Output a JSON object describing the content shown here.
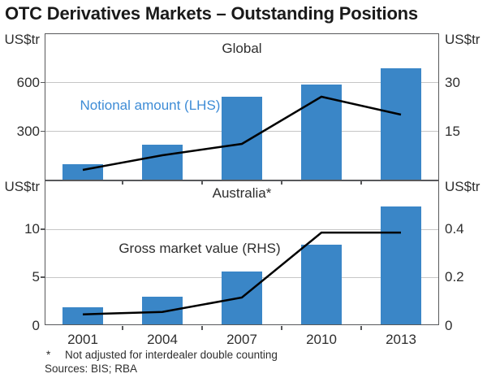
{
  "title": "OTC Derivatives Markets – Outstanding Positions",
  "footnote": {
    "marker": "*",
    "text": "Not adjusted for interdealer double counting",
    "sources": "Sources: BIS; RBA"
  },
  "colors": {
    "bar_blue": "#3a86c7",
    "blue_label": "#3e8cd6",
    "line_black": "#000000",
    "axis_gray": "#58595b",
    "grid_gray": "#c6c6c6"
  },
  "chart_data": [
    {
      "type": "bar",
      "panel_label": "Global",
      "unit_left": "US$tr",
      "unit_right": "US$tr",
      "categories": [
        "2001",
        "2004",
        "2007",
        "2010",
        "2013"
      ],
      "series": [
        {
          "name": "Notional amount (LHS)",
          "type": "bar",
          "axis": "left",
          "values": [
            95,
            215,
            510,
            585,
            685
          ]
        },
        {
          "name": "Gross market value (RHS)",
          "type": "line",
          "axis": "right",
          "values": [
            3,
            7.5,
            11,
            25.5,
            20
          ]
        }
      ],
      "left_axis": {
        "label": "US$tr",
        "ticks": [
          600,
          300
        ],
        "range": [
          0,
          900
        ]
      },
      "right_axis": {
        "label": "US$tr",
        "ticks": [
          30,
          15
        ],
        "range": [
          0,
          45
        ]
      },
      "grid": true,
      "legend_position": "in-plot"
    },
    {
      "type": "bar",
      "panel_label": "Australia*",
      "unit_left": "US$tr",
      "unit_right": "US$tr",
      "categories": [
        "2001",
        "2004",
        "2007",
        "2010",
        "2013"
      ],
      "series": [
        {
          "name": "Notional amount (LHS)",
          "type": "bar",
          "axis": "left",
          "values": [
            1.9,
            3.0,
            5.6,
            8.4,
            12.3
          ]
        },
        {
          "name": "Gross market value (RHS)",
          "type": "line",
          "axis": "right",
          "values": [
            0.045,
            0.055,
            0.115,
            0.385,
            0.385
          ]
        }
      ],
      "left_axis": {
        "label": "US$tr",
        "ticks": [
          10,
          5,
          0
        ],
        "range": [
          0,
          15
        ]
      },
      "right_axis": {
        "label": "US$tr",
        "ticks": [
          0.4,
          0.2,
          0
        ],
        "range": [
          0,
          0.6
        ]
      },
      "grid": true,
      "legend_position": "in-plot"
    }
  ]
}
